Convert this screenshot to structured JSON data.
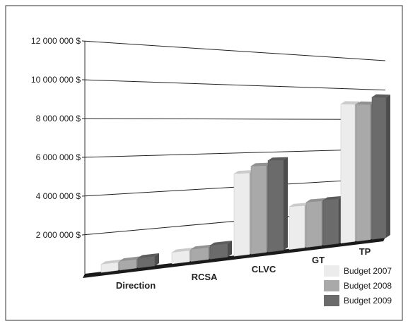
{
  "chart_data": {
    "type": "bar",
    "title": "",
    "xlabel": "",
    "ylabel": "",
    "ylim": [
      0,
      12000000
    ],
    "yticks": [
      "2 000 000 $",
      "4 000 000 $",
      "6 000 000 $",
      "8 000 000 $",
      "10 000 000 $",
      "12 000 000 $"
    ],
    "ytick_values": [
      2000000,
      4000000,
      6000000,
      8000000,
      10000000,
      12000000
    ],
    "categories": [
      "Direction",
      "RCSA",
      "CLVC",
      "GT",
      "TP"
    ],
    "series": [
      {
        "name": "Budget 2007",
        "values": [
          400000,
          600000,
          4800000,
          2600000,
          9000000
        ],
        "color": "#ececec"
      },
      {
        "name": "Budget 2008",
        "values": [
          450000,
          650000,
          5200000,
          2800000,
          9000000
        ],
        "color": "#a9a9a9"
      },
      {
        "name": "Budget 2009",
        "values": [
          500000,
          750000,
          5500000,
          2850000,
          9500000
        ],
        "color": "#6b6b6b"
      }
    ],
    "grid": true,
    "legend_position": "bottom-right",
    "style": "3d-perspective"
  }
}
